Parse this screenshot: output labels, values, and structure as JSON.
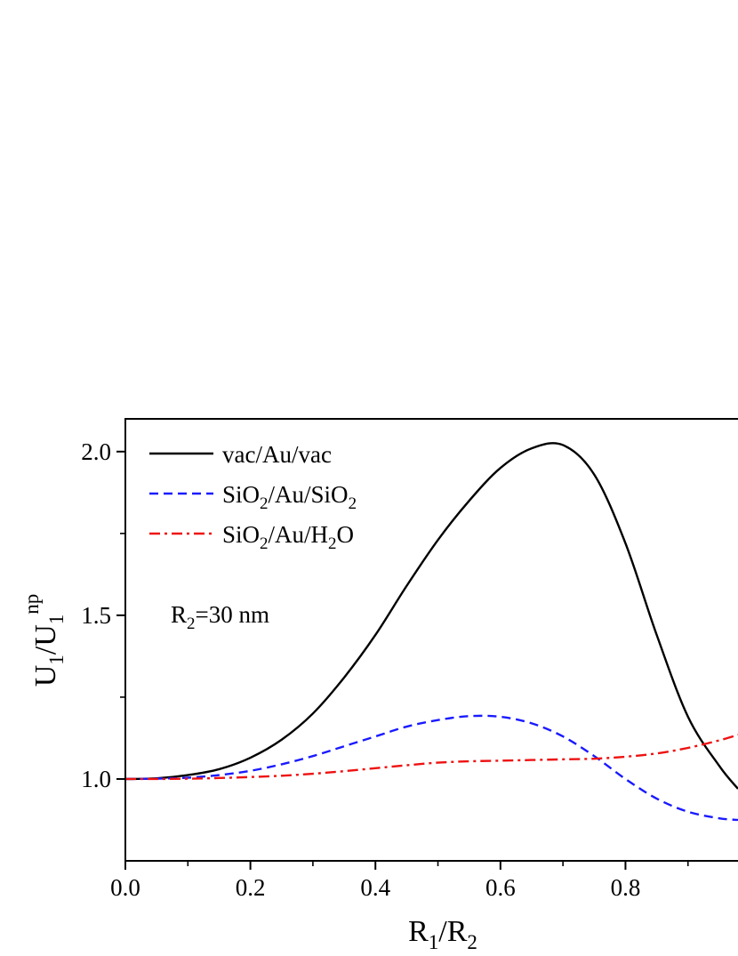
{
  "chart_data": {
    "type": "line",
    "xlabel": {
      "main": "R",
      "sub1": "1",
      "mid": "/R",
      "sub2": "2"
    },
    "ylabel": {
      "main": "U",
      "sub1": "1",
      "mid": "/U",
      "sub2": "1",
      "sup": "np"
    },
    "xlim": [
      0.0,
      0.98
    ],
    "ylim": [
      0.75,
      2.1
    ],
    "xticks": [
      0.0,
      0.2,
      0.4,
      0.6,
      0.8
    ],
    "xtick_labels": [
      "0.0",
      "0.2",
      "0.4",
      "0.6",
      "0.8"
    ],
    "yticks": [
      1.0,
      1.5,
      2.0
    ],
    "ytick_labels": [
      "1.0",
      "1.5",
      "2.0"
    ],
    "legend_position": "top-left",
    "annotation": {
      "main": "R",
      "sub": "2",
      "rest": "=30 nm"
    },
    "series": [
      {
        "legend": {
          "t1": "vac/Au/vac"
        },
        "color": "#000000",
        "dash": "solid",
        "x": [
          0.0,
          0.05,
          0.1,
          0.15,
          0.2,
          0.25,
          0.3,
          0.35,
          0.4,
          0.45,
          0.5,
          0.55,
          0.6,
          0.65,
          0.7,
          0.75,
          0.8,
          0.85,
          0.9,
          0.95,
          0.98
        ],
        "y": [
          1.0,
          1.002,
          1.012,
          1.03,
          1.065,
          1.12,
          1.2,
          1.31,
          1.44,
          1.59,
          1.73,
          1.85,
          1.95,
          2.01,
          2.02,
          1.93,
          1.72,
          1.44,
          1.19,
          1.04,
          0.97
        ]
      },
      {
        "legend": {
          "t1": "SiO",
          "s1": "2",
          "t2": "/Au/SiO",
          "s2": "2"
        },
        "color": "#1a1aff",
        "dash": "dashed",
        "x": [
          0.0,
          0.05,
          0.1,
          0.15,
          0.2,
          0.25,
          0.3,
          0.35,
          0.4,
          0.45,
          0.5,
          0.55,
          0.6,
          0.65,
          0.7,
          0.75,
          0.8,
          0.85,
          0.9,
          0.95,
          0.98
        ],
        "y": [
          1.0,
          1.001,
          1.004,
          1.012,
          1.025,
          1.045,
          1.07,
          1.1,
          1.13,
          1.16,
          1.18,
          1.192,
          1.19,
          1.17,
          1.13,
          1.07,
          1.0,
          0.94,
          0.9,
          0.88,
          0.875
        ]
      },
      {
        "legend": {
          "t1": "SiO",
          "s1": "2",
          "t2": "/Au/H",
          "s2": "2",
          "t3": "O"
        },
        "color": "#ee1111",
        "dash": "dashdot",
        "x": [
          0.0,
          0.05,
          0.1,
          0.15,
          0.2,
          0.25,
          0.3,
          0.35,
          0.4,
          0.45,
          0.5,
          0.55,
          0.6,
          0.65,
          0.7,
          0.75,
          0.8,
          0.85,
          0.9,
          0.95,
          0.98
        ],
        "y": [
          1.0,
          1.0,
          1.001,
          1.003,
          1.006,
          1.01,
          1.016,
          1.024,
          1.033,
          1.042,
          1.05,
          1.054,
          1.056,
          1.058,
          1.06,
          1.062,
          1.068,
          1.078,
          1.095,
          1.118,
          1.135
        ]
      }
    ]
  }
}
